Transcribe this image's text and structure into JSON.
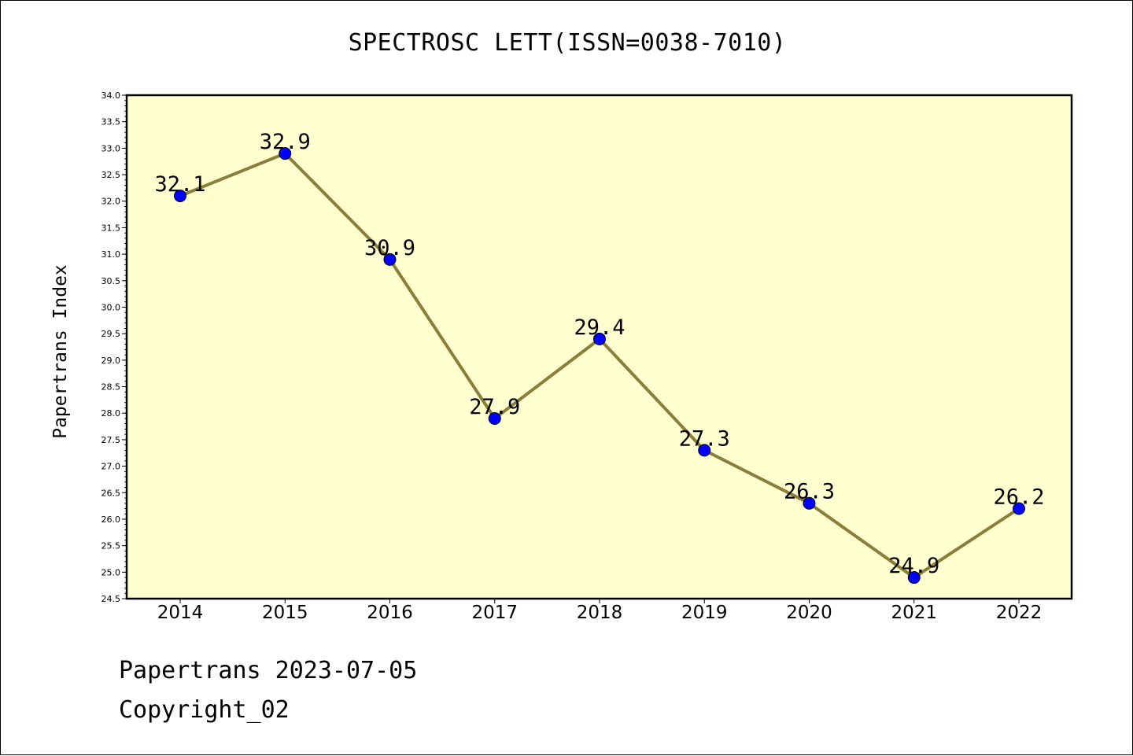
{
  "chart_data": {
    "type": "line",
    "title": "SPECTROSC LETT(ISSN=0038-7010)",
    "xlabel": "",
    "ylabel": "Papertrans Index",
    "categories": [
      "2014",
      "2015",
      "2016",
      "2017",
      "2018",
      "2019",
      "2020",
      "2021",
      "2022"
    ],
    "series": [
      {
        "values": [
          32.1,
          32.9,
          30.9,
          27.9,
          29.4,
          27.3,
          26.3,
          24.9,
          26.2
        ],
        "data_labels": [
          "32.1",
          "32.9",
          "30.9",
          "27.9",
          "29.4",
          "27.3",
          "26.3",
          "24.9",
          "26.2"
        ]
      }
    ],
    "ylim": [
      24.5,
      34.0
    ],
    "yticks": [
      "24.5",
      "25.0",
      "25.5",
      "26.0",
      "26.5",
      "27.0",
      "27.5",
      "28.0",
      "28.5",
      "29.0",
      "29.5",
      "30.0",
      "30.5",
      "31.0",
      "31.5",
      "32.0",
      "32.5",
      "33.0",
      "33.5",
      "34.0"
    ],
    "grid": false,
    "legend": "none",
    "colors": {
      "plot_background": "#ffffd0",
      "line": "#8b7d3a",
      "marker": "#0000ff"
    }
  },
  "footer": {
    "line1": "Papertrans 2023-07-05",
    "line2": "Copyright_02"
  }
}
